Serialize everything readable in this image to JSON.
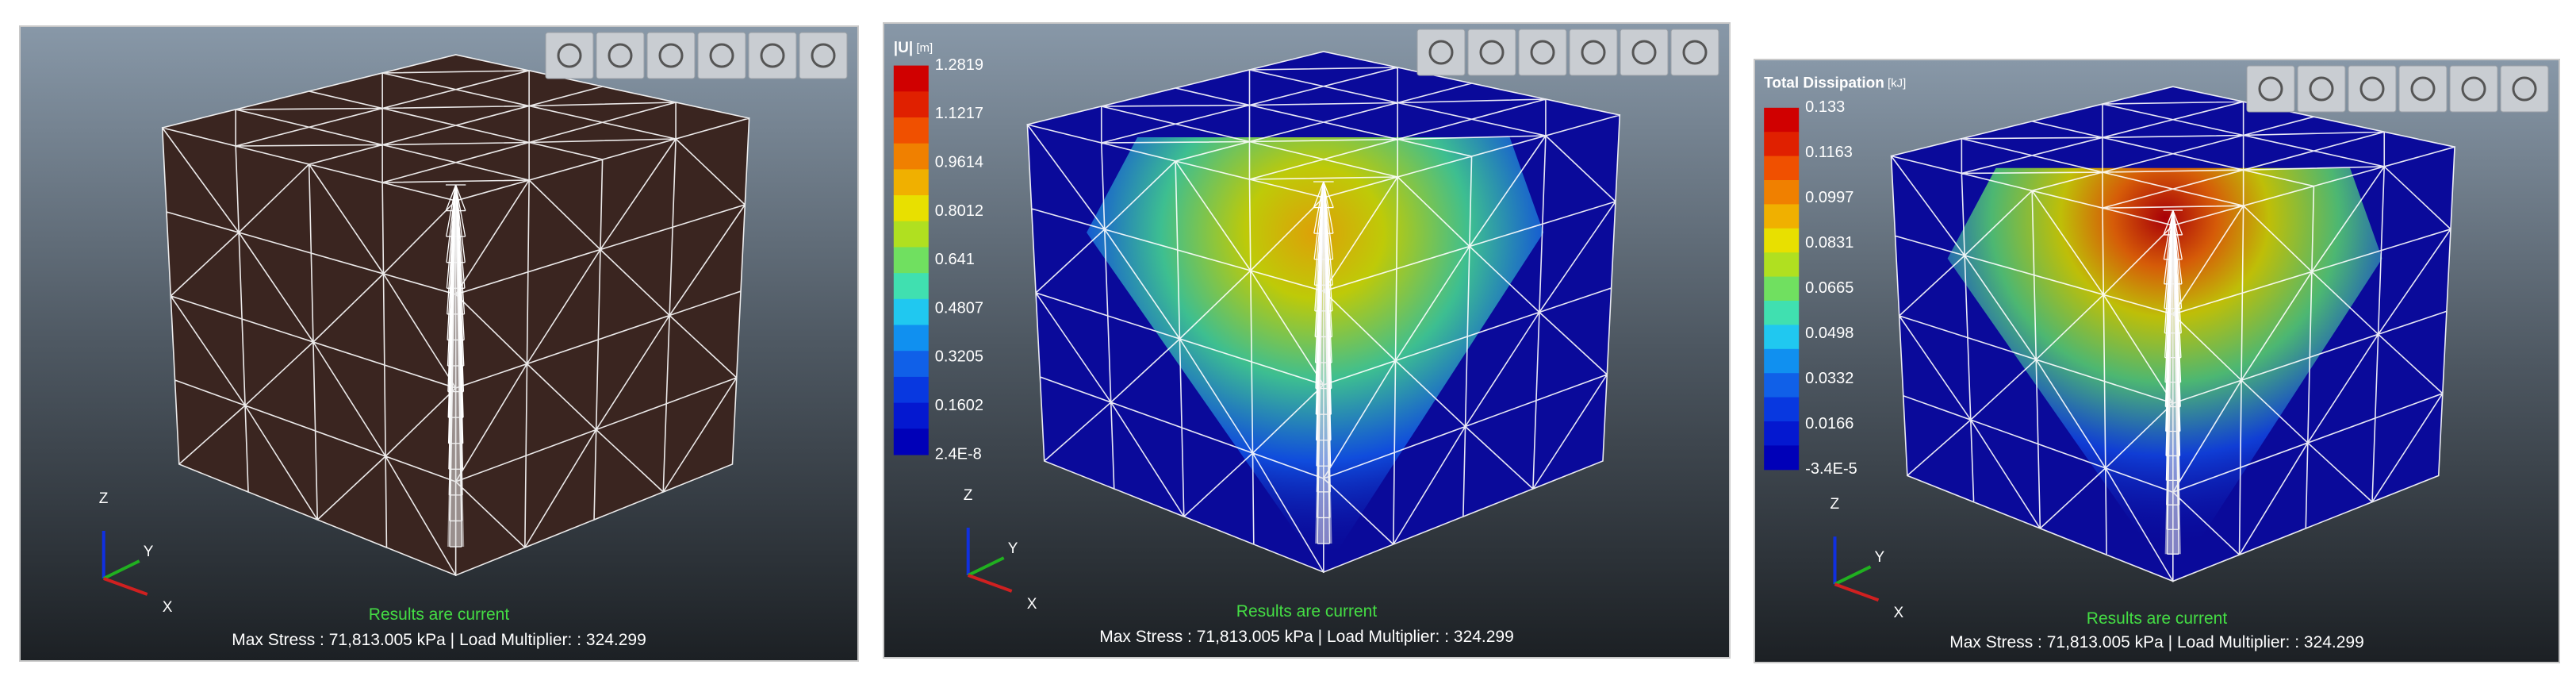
{
  "panels": [
    {
      "status": "Results are current",
      "info": "Max Stress : 71,813.005 kPa | Load Multiplier:  : 324.299",
      "axis_labels": {
        "z": "Z",
        "y": "Y",
        "x": "X"
      }
    },
    {
      "legend": {
        "title": "|U|",
        "unit": "[m]",
        "labels": [
          "1.2819",
          "1.1217",
          "0.9614",
          "0.8012",
          "0.641",
          "0.4807",
          "0.3205",
          "0.1602",
          "2.4E-8"
        ]
      },
      "status": "Results are current",
      "info": "Max Stress : 71,813.005 kPa | Load Multiplier:  : 324.299",
      "axis_labels": {
        "z": "Z",
        "y": "Y",
        "x": "X"
      }
    },
    {
      "legend": {
        "title": "Total Dissipation",
        "unit": "[kJ]",
        "labels": [
          "0.133",
          "0.1163",
          "0.0997",
          "0.0831",
          "0.0665",
          "0.0498",
          "0.0332",
          "0.0166",
          "-3.4E-5"
        ]
      },
      "status": "Results are current",
      "info": "Max Stress : 71,813.005 kPa | Load Multiplier:  : 324.299",
      "axis_labels": {
        "z": "Z",
        "y": "Y",
        "x": "X"
      }
    }
  ]
}
